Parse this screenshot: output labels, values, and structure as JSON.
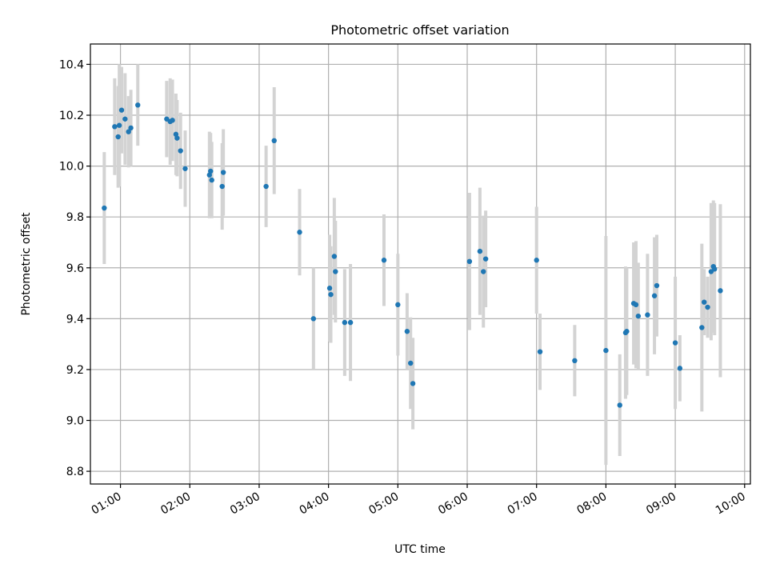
{
  "chart_data": {
    "type": "scatter",
    "title": "Photometric offset variation",
    "xlabel": "UTC time",
    "ylabel": "Photometric offset",
    "xlim": [
      "00:34",
      "10:05"
    ],
    "ylim": [
      8.75,
      10.48
    ],
    "x_ticks": [
      "01:00",
      "02:00",
      "03:00",
      "04:00",
      "05:00",
      "06:00",
      "07:00",
      "08:00",
      "09:00",
      "10:00"
    ],
    "y_ticks": [
      8.8,
      9.0,
      9.2,
      9.4,
      9.6,
      9.8,
      10.0,
      10.2,
      10.4
    ],
    "grid": true,
    "point_color": "#1f77b4",
    "error_color": "#d3d3d3",
    "series": [
      {
        "x": [
          "00:46",
          "00:55",
          "00:58",
          "00:59",
          "01:01",
          "01:04",
          "01:07",
          "01:09",
          "01:15",
          "01:40",
          "01:43",
          "01:45",
          "01:48",
          "01:49",
          "01:52",
          "01:56",
          "02:17",
          "02:18",
          "02:19",
          "02:28",
          "02:29",
          "03:06",
          "03:13",
          "03:35",
          "03:47",
          "04:01",
          "04:02",
          "04:05",
          "04:06",
          "04:14",
          "04:19",
          "04:48",
          "05:00",
          "05:08",
          "05:11",
          "05:13",
          "06:02",
          "06:11",
          "06:14",
          "06:16",
          "07:00",
          "07:03",
          "07:33",
          "08:00",
          "08:12",
          "08:17",
          "08:18",
          "08:24",
          "08:26",
          "08:28",
          "08:36",
          "08:42",
          "08:44",
          "09:00",
          "09:04",
          "09:23",
          "09:25",
          "09:28",
          "09:31",
          "09:33",
          "09:34",
          "09:39"
        ],
        "y": [
          9.835,
          10.155,
          10.115,
          10.16,
          10.22,
          10.185,
          10.135,
          10.15,
          10.24,
          10.185,
          10.175,
          10.18,
          10.125,
          10.11,
          10.06,
          9.99,
          9.965,
          9.98,
          9.945,
          9.92,
          9.975,
          9.92,
          10.1,
          9.74,
          9.4,
          9.52,
          9.495,
          9.645,
          9.585,
          9.385,
          9.385,
          9.63,
          9.455,
          9.35,
          9.225,
          9.145,
          9.625,
          9.665,
          9.585,
          9.635,
          9.63,
          9.27,
          9.235,
          9.275,
          9.06,
          9.345,
          9.35,
          9.46,
          9.455,
          9.41,
          9.415,
          9.49,
          9.53,
          9.305,
          9.205,
          9.365,
          9.465,
          9.445,
          9.585,
          9.605,
          9.595,
          9.51
        ],
        "err": [
          0.22,
          0.19,
          0.2,
          0.24,
          0.17,
          0.18,
          0.14,
          0.15,
          0.16,
          0.15,
          0.17,
          0.16,
          0.16,
          0.15,
          0.15,
          0.15,
          0.17,
          0.15,
          0.15,
          0.17,
          0.17,
          0.16,
          0.21,
          0.17,
          0.2,
          0.21,
          0.19,
          0.23,
          0.2,
          0.21,
          0.23,
          0.18,
          0.2,
          0.15,
          0.18,
          0.18,
          0.27,
          0.25,
          0.22,
          0.19,
          0.21,
          0.15,
          0.14,
          0.45,
          0.2,
          0.26,
          0.25,
          0.24,
          0.25,
          0.21,
          0.24,
          0.23,
          0.2,
          0.26,
          0.13,
          0.33,
          0.13,
          0.12,
          0.27,
          0.26,
          0.26,
          0.34
        ]
      }
    ]
  }
}
